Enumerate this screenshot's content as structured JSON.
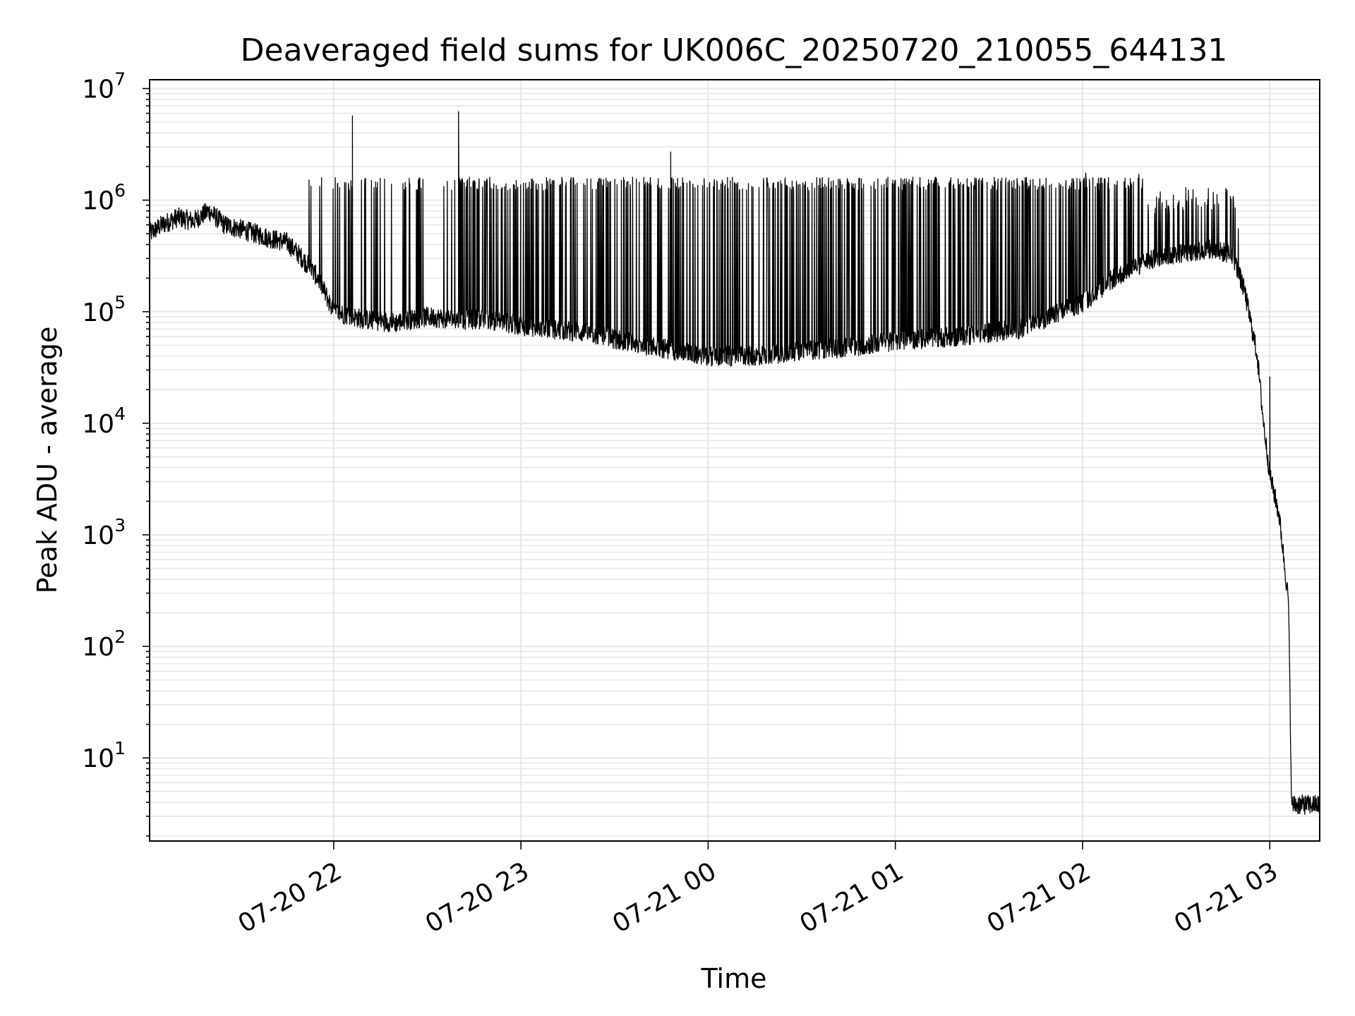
{
  "chart_data": {
    "type": "line",
    "title": "Deaveraged field sums for UK006C_20250720_210055_644131",
    "xlabel": "Time",
    "ylabel": "Peak ADU - average",
    "yscale": "log",
    "ylim": [
      1.8,
      12000000
    ],
    "xlim": [
      "2025-07-20 21:01",
      "2025-07-21 03:16"
    ],
    "grid": true,
    "x_ticks": [
      {
        "value": "2025-07-20 22:00",
        "label": "07-20 22"
      },
      {
        "value": "2025-07-20 23:00",
        "label": "07-20 23"
      },
      {
        "value": "2025-07-21 00:00",
        "label": "07-21 00"
      },
      {
        "value": "2025-07-21 01:00",
        "label": "07-21 01"
      },
      {
        "value": "2025-07-21 02:00",
        "label": "07-21 02"
      },
      {
        "value": "2025-07-21 03:00",
        "label": "07-21 03"
      }
    ],
    "y_ticks": [
      {
        "value": 10,
        "base": "10",
        "exp": "1"
      },
      {
        "value": 100,
        "base": "10",
        "exp": "2"
      },
      {
        "value": 1000,
        "base": "10",
        "exp": "3"
      },
      {
        "value": 10000,
        "base": "10",
        "exp": "4"
      },
      {
        "value": 100000,
        "base": "10",
        "exp": "5"
      },
      {
        "value": 1000000,
        "base": "10",
        "exp": "6"
      },
      {
        "value": 10000000,
        "base": "10",
        "exp": "7"
      }
    ],
    "line_color": "#000000",
    "grid_color": "#e6e6e6",
    "baseline_points": [
      [
        "2025-07-20 21:01",
        500000
      ],
      [
        "2025-07-20 21:05",
        600000
      ],
      [
        "2025-07-20 21:10",
        700000
      ],
      [
        "2025-07-20 21:15",
        650000
      ],
      [
        "2025-07-20 21:20",
        800000
      ],
      [
        "2025-07-20 21:25",
        600000
      ],
      [
        "2025-07-20 21:30",
        550000
      ],
      [
        "2025-07-20 21:35",
        500000
      ],
      [
        "2025-07-20 21:40",
        450000
      ],
      [
        "2025-07-20 21:45",
        420000
      ],
      [
        "2025-07-20 21:50",
        300000
      ],
      [
        "2025-07-20 21:55",
        200000
      ],
      [
        "2025-07-20 22:00",
        100000
      ],
      [
        "2025-07-20 22:10",
        85000
      ],
      [
        "2025-07-20 22:20",
        80000
      ],
      [
        "2025-07-20 22:30",
        90000
      ],
      [
        "2025-07-20 22:40",
        85000
      ],
      [
        "2025-07-20 22:50",
        85000
      ],
      [
        "2025-07-20 23:00",
        75000
      ],
      [
        "2025-07-20 23:20",
        65000
      ],
      [
        "2025-07-20 23:40",
        50000
      ],
      [
        "2025-07-21 00:00",
        40000
      ],
      [
        "2025-07-21 00:15",
        40000
      ],
      [
        "2025-07-21 00:30",
        45000
      ],
      [
        "2025-07-21 00:45",
        48000
      ],
      [
        "2025-07-21 01:00",
        55000
      ],
      [
        "2025-07-21 01:20",
        60000
      ],
      [
        "2025-07-21 01:40",
        70000
      ],
      [
        "2025-07-21 02:00",
        120000
      ],
      [
        "2025-07-21 02:10",
        200000
      ],
      [
        "2025-07-21 02:20",
        280000
      ],
      [
        "2025-07-21 02:30",
        330000
      ],
      [
        "2025-07-21 02:40",
        360000
      ],
      [
        "2025-07-21 02:48",
        330000
      ],
      [
        "2025-07-21 02:52",
        150000
      ],
      [
        "2025-07-21 02:56",
        40000
      ],
      [
        "2025-07-21 02:58",
        10000
      ],
      [
        "2025-07-21 03:00",
        3500
      ],
      [
        "2025-07-21 03:03",
        1500
      ],
      [
        "2025-07-21 03:06",
        250
      ],
      [
        "2025-07-21 03:07",
        3.8
      ],
      [
        "2025-07-21 03:16",
        3.8
      ]
    ],
    "spike_peaks": [
      [
        "2025-07-20 22:06",
        5700000
      ],
      [
        "2025-07-20 22:40",
        6200000
      ],
      [
        "2025-07-20 23:48",
        2700000
      ],
      [
        "2025-07-21 02:18",
        1700000
      ],
      [
        "2025-07-21 02:01",
        1750000
      ],
      [
        "2025-07-21 03:00",
        26000
      ]
    ],
    "oscillation_upper_level": 1400000,
    "oscillation_lower_level": 40000
  }
}
